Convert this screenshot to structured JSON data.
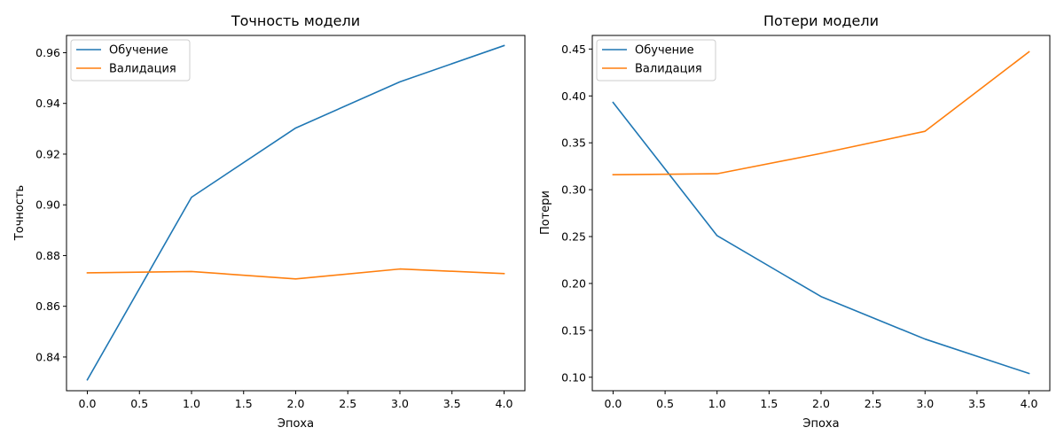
{
  "chart_data": [
    {
      "type": "line",
      "title": "Точность модели",
      "xlabel": "Эпоха",
      "ylabel": "Точность",
      "x": [
        0,
        1,
        2,
        3,
        4
      ],
      "xlim": [
        -0.2,
        4.2
      ],
      "ylim": [
        0.8267,
        0.9668
      ],
      "xticks": [
        "0.0",
        "0.5",
        "1.0",
        "1.5",
        "2.0",
        "2.5",
        "3.0",
        "3.5",
        "4.0"
      ],
      "yticks": [
        "0.84",
        "0.86",
        "0.88",
        "0.90",
        "0.92",
        "0.94",
        "0.96"
      ],
      "legend_position": "upper left",
      "grid": false,
      "series": [
        {
          "name": "Обучение",
          "color": "#1f77b4",
          "values": [
            0.831,
            0.903,
            0.9303,
            0.9485,
            0.9628
          ]
        },
        {
          "name": "Валидация",
          "color": "#ff7f0e",
          "values": [
            0.8732,
            0.8737,
            0.8708,
            0.8747,
            0.8729
          ]
        }
      ]
    },
    {
      "type": "line",
      "title": "Потери модели",
      "xlabel": "Эпоха",
      "ylabel": "Потери",
      "x": [
        0,
        1,
        2,
        3,
        4
      ],
      "xlim": [
        -0.2,
        4.2
      ],
      "ylim": [
        0.0856,
        0.4645
      ],
      "xticks": [
        "0.0",
        "0.5",
        "1.0",
        "1.5",
        "2.0",
        "2.5",
        "3.0",
        "3.5",
        "4.0"
      ],
      "yticks": [
        "0.10",
        "0.15",
        "0.20",
        "0.25",
        "0.30",
        "0.35",
        "0.40",
        "0.45"
      ],
      "legend_position": "upper left",
      "grid": false,
      "series": [
        {
          "name": "Обучение",
          "color": "#1f77b4",
          "values": [
            0.393,
            0.251,
            0.186,
            0.1407,
            0.104
          ]
        },
        {
          "name": "Валидация",
          "color": "#ff7f0e",
          "values": [
            0.316,
            0.317,
            0.3387,
            0.3623,
            0.447
          ]
        }
      ]
    }
  ]
}
